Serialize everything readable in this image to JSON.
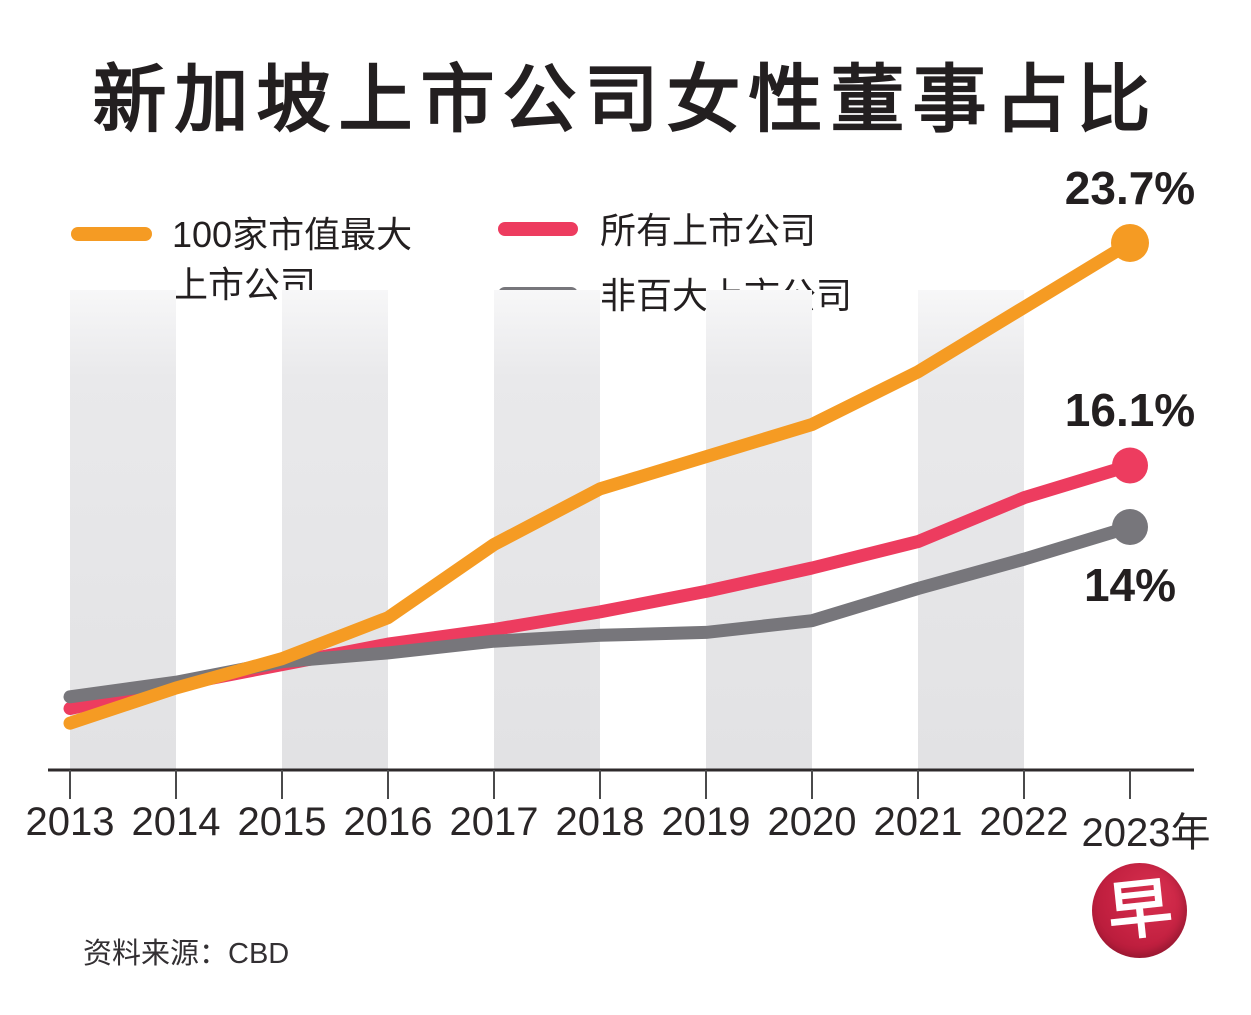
{
  "title": "新加坡上市公司女性董事占比",
  "legend": {
    "items": [
      {
        "line1": "100家市值最大",
        "line2": "上市公司",
        "color": "#F59B23"
      },
      {
        "line1": "所有上市公司",
        "line2": "",
        "color": "#ED3C5F"
      },
      {
        "line1": "非百大上市公司",
        "line2": "",
        "color": "#77767B"
      }
    ]
  },
  "source": "资料来源：CBD",
  "logo": {
    "text": "早",
    "color": "#C22040"
  },
  "chart_data": {
    "type": "line",
    "categories": [
      "2013",
      "2014",
      "2015",
      "2016",
      "2017",
      "2018",
      "2019",
      "2020",
      "2021",
      "2022",
      "2023年"
    ],
    "series": [
      {
        "name": "100家市值最大上市公司",
        "color": "#F59B23",
        "values": [
          7.3,
          8.5,
          9.5,
          10.9,
          13.4,
          15.3,
          16.4,
          17.5,
          19.3,
          21.5,
          23.7
        ],
        "end_label": "23.7%",
        "end_label_position": "above"
      },
      {
        "name": "所有上市公司",
        "color": "#ED3C5F",
        "values": [
          7.8,
          8.6,
          9.3,
          10.0,
          10.5,
          11.1,
          11.8,
          12.6,
          13.5,
          15.0,
          16.1
        ],
        "end_label": "16.1%",
        "end_label_position": "above"
      },
      {
        "name": "非百大上市公司",
        "color": "#77767B",
        "values": [
          8.2,
          8.7,
          9.4,
          9.7,
          10.1,
          10.3,
          10.4,
          10.8,
          11.9,
          12.9,
          14.0
        ],
        "end_label": "14%",
        "end_label_position": "below"
      }
    ],
    "xlabel": "",
    "ylabel": "",
    "ylim": [
      5.7,
      24.2
    ],
    "y_axis_visible": false,
    "grid": "alternating vertical gray bands over 2013-14, 2015-16, 2017-18, 2019-20, 2021-22",
    "legend_position": "top-left"
  }
}
